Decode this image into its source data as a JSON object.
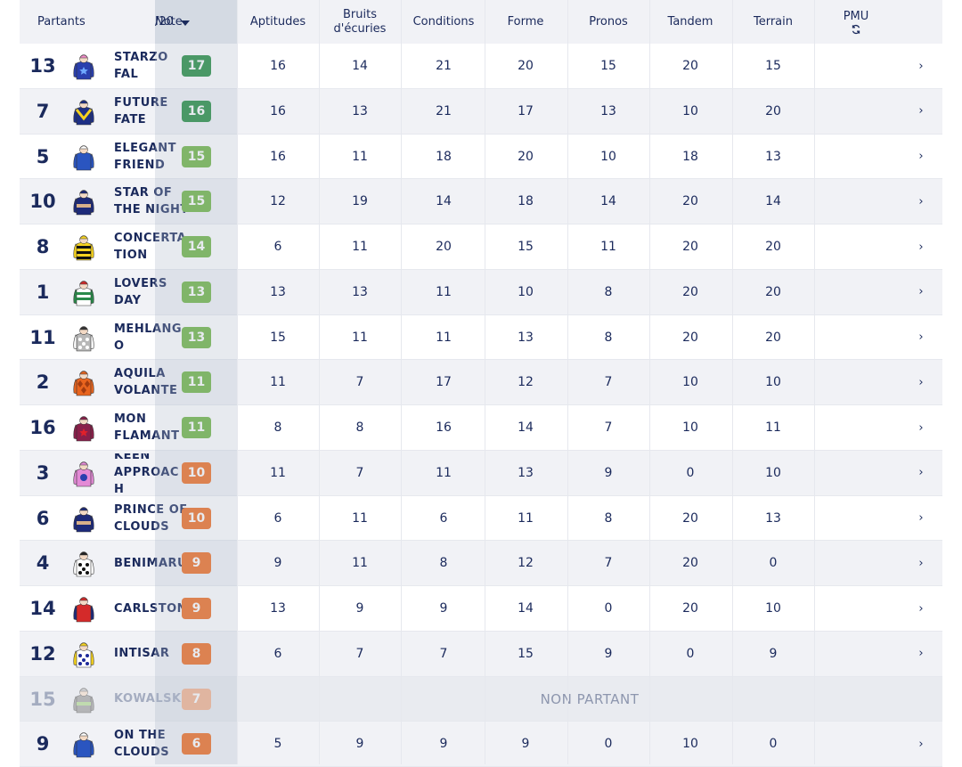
{
  "header": {
    "partants": "Partants",
    "note_line1": "Note",
    "note_line2": "/20",
    "aptitudes": "Aptitudes",
    "bruits_line1": "Bruits",
    "bruits_line2": "d'écuries",
    "conditions": "Conditions",
    "forme": "Forme",
    "pronos": "Pronos",
    "tandem": "Tandem",
    "terrain": "Terrain",
    "pmu": "PMU",
    "pmu_icon": "refresh-icon",
    "sort_icon": "caret-down-icon"
  },
  "colors": {
    "note_green_dark": "#1f8a3b",
    "note_green": "#6cb33f",
    "note_orange": "#f06a1e",
    "note_orange_light": "#f5b38f",
    "row_even": "#ffffff",
    "row_odd": "#f1f2f6",
    "text": "#1b2a5c"
  },
  "runners": [
    {
      "num": "13",
      "name": "STARZO FAL",
      "note": "17",
      "badge": "#1f8a3b",
      "silk": {
        "body": "#2a3fae",
        "sleeve": "#2a3fae",
        "cap": "#f08cc8",
        "pattern": "star"
      },
      "scores": [
        "16",
        "14",
        "21",
        "20",
        "15",
        "20",
        "15"
      ],
      "chevron": "›"
    },
    {
      "num": "7",
      "name": "FUTURE FATE",
      "note": "16",
      "badge": "#1f8a3b",
      "silk": {
        "body": "#1d2f86",
        "sleeve": "#1d2f86",
        "cap": "#1d2f86",
        "pattern": "chevron-yellow"
      },
      "scores": [
        "16",
        "13",
        "21",
        "17",
        "13",
        "10",
        "20"
      ],
      "chevron": "›"
    },
    {
      "num": "5",
      "name": "ELEGANT FRIEND",
      "note": "15",
      "badge": "#6cb33f",
      "silk": {
        "body": "#2a55c0",
        "sleeve": "#2a55c0",
        "cap": "#ffffff",
        "pattern": "plain"
      },
      "scores": [
        "16",
        "11",
        "18",
        "20",
        "10",
        "18",
        "13"
      ],
      "chevron": "›"
    },
    {
      "num": "10",
      "name": "STAR OF THE NIGHT",
      "note": "15",
      "badge": "#6cb33f",
      "silk": {
        "body": "#1d2a7a",
        "sleeve": "#1d2a7a",
        "cap": "#1d2a7a",
        "pattern": "band-tan"
      },
      "scores": [
        "12",
        "19",
        "14",
        "18",
        "14",
        "20",
        "14"
      ],
      "chevron": "›"
    },
    {
      "num": "8",
      "name": "CONCERTATION",
      "note": "14",
      "badge": "#6cb33f",
      "silk": {
        "body": "#f5d21f",
        "sleeve": "#f5d21f",
        "cap": "#f5d21f",
        "pattern": "hoops-black"
      },
      "scores": [
        "6",
        "11",
        "20",
        "15",
        "11",
        "20",
        "20"
      ],
      "chevron": "›"
    },
    {
      "num": "1",
      "name": "LOVERS DAY",
      "note": "13",
      "badge": "#6cb33f",
      "silk": {
        "body": "#ffffff",
        "sleeve": "#2a8a4a",
        "cap": "#d42a2a",
        "pattern": "hoops-green"
      },
      "scores": [
        "13",
        "13",
        "11",
        "10",
        "8",
        "20",
        "20"
      ],
      "chevron": "›"
    },
    {
      "num": "11",
      "name": "MEHLANGO",
      "note": "13",
      "badge": "#6cb33f",
      "silk": {
        "body": "#b8b8b8",
        "sleeve": "#ffffff",
        "cap": "#333333",
        "pattern": "spots-white"
      },
      "scores": [
        "15",
        "11",
        "11",
        "13",
        "8",
        "20",
        "20"
      ],
      "chevron": "›"
    },
    {
      "num": "2",
      "name": "AQUILA VOLANTE",
      "note": "11",
      "badge": "#6cb33f",
      "silk": {
        "body": "#e8641e",
        "sleeve": "#e8641e",
        "cap": "#e8641e",
        "pattern": "diamonds"
      },
      "scores": [
        "11",
        "7",
        "17",
        "12",
        "7",
        "10",
        "10"
      ],
      "chevron": "›"
    },
    {
      "num": "16",
      "name": "MON FLAMANT",
      "note": "11",
      "badge": "#6cb33f",
      "silk": {
        "body": "#8a1f4a",
        "sleeve": "#8a1f4a",
        "cap": "#8a1f4a",
        "pattern": "star-red"
      },
      "scores": [
        "8",
        "8",
        "16",
        "14",
        "7",
        "10",
        "11"
      ],
      "chevron": "›"
    },
    {
      "num": "3",
      "name": "KEEN APPROACH",
      "note": "10",
      "badge": "#f06a1e",
      "silk": {
        "body": "#e38ad6",
        "sleeve": "#e38ad6",
        "cap": "#e38ad6",
        "pattern": "disc-blue"
      },
      "scores": [
        "11",
        "7",
        "11",
        "13",
        "9",
        "0",
        "10"
      ],
      "chevron": "›"
    },
    {
      "num": "6",
      "name": "PRINCE OF CLOUDS",
      "note": "10",
      "badge": "#f06a1e",
      "silk": {
        "body": "#1d2a7a",
        "sleeve": "#1d2a7a",
        "cap": "#1d2a7a",
        "pattern": "band-tan"
      },
      "scores": [
        "6",
        "11",
        "6",
        "11",
        "8",
        "20",
        "13"
      ],
      "chevron": "›"
    },
    {
      "num": "4",
      "name": "BENIMARU",
      "note": "9",
      "badge": "#f06a1e",
      "silk": {
        "body": "#ffffff",
        "sleeve": "#ffffff",
        "cap": "#222222",
        "pattern": "spots-black"
      },
      "scores": [
        "9",
        "11",
        "8",
        "12",
        "7",
        "20",
        "0"
      ],
      "chevron": "›"
    },
    {
      "num": "14",
      "name": "CARLSTON",
      "note": "9",
      "badge": "#f06a1e",
      "silk": {
        "body": "#d42a2a",
        "sleeve": "#1d2a7a",
        "cap": "#d42a2a",
        "pattern": "plain"
      },
      "scores": [
        "13",
        "9",
        "9",
        "14",
        "0",
        "20",
        "10"
      ],
      "chevron": "›"
    },
    {
      "num": "12",
      "name": "INTISAR",
      "note": "8",
      "badge": "#f06a1e",
      "silk": {
        "body": "#ffffff",
        "sleeve": "#f5d21f",
        "cap": "#f5d21f",
        "pattern": "spots-blue"
      },
      "scores": [
        "6",
        "7",
        "7",
        "15",
        "9",
        "0",
        "9"
      ],
      "chevron": "›"
    },
    {
      "num": "15",
      "name": "KOWALSKI",
      "note": "7",
      "badge": "#f5b38f",
      "silk": {
        "body": "#8a8a8a",
        "sleeve": "#8a8a8a",
        "cap": "#bfbfbf",
        "pattern": "band-green"
      },
      "scores": [],
      "non_partant": "NON PARTANT",
      "chevron": ""
    },
    {
      "num": "9",
      "name": "ON THE CLOUDS",
      "note": "6",
      "badge": "#f06a1e",
      "silk": {
        "body": "#2a55c0",
        "sleeve": "#2a55c0",
        "cap": "#ffffff",
        "pattern": "plain"
      },
      "scores": [
        "5",
        "9",
        "9",
        "9",
        "0",
        "10",
        "0"
      ],
      "chevron": "›"
    }
  ]
}
